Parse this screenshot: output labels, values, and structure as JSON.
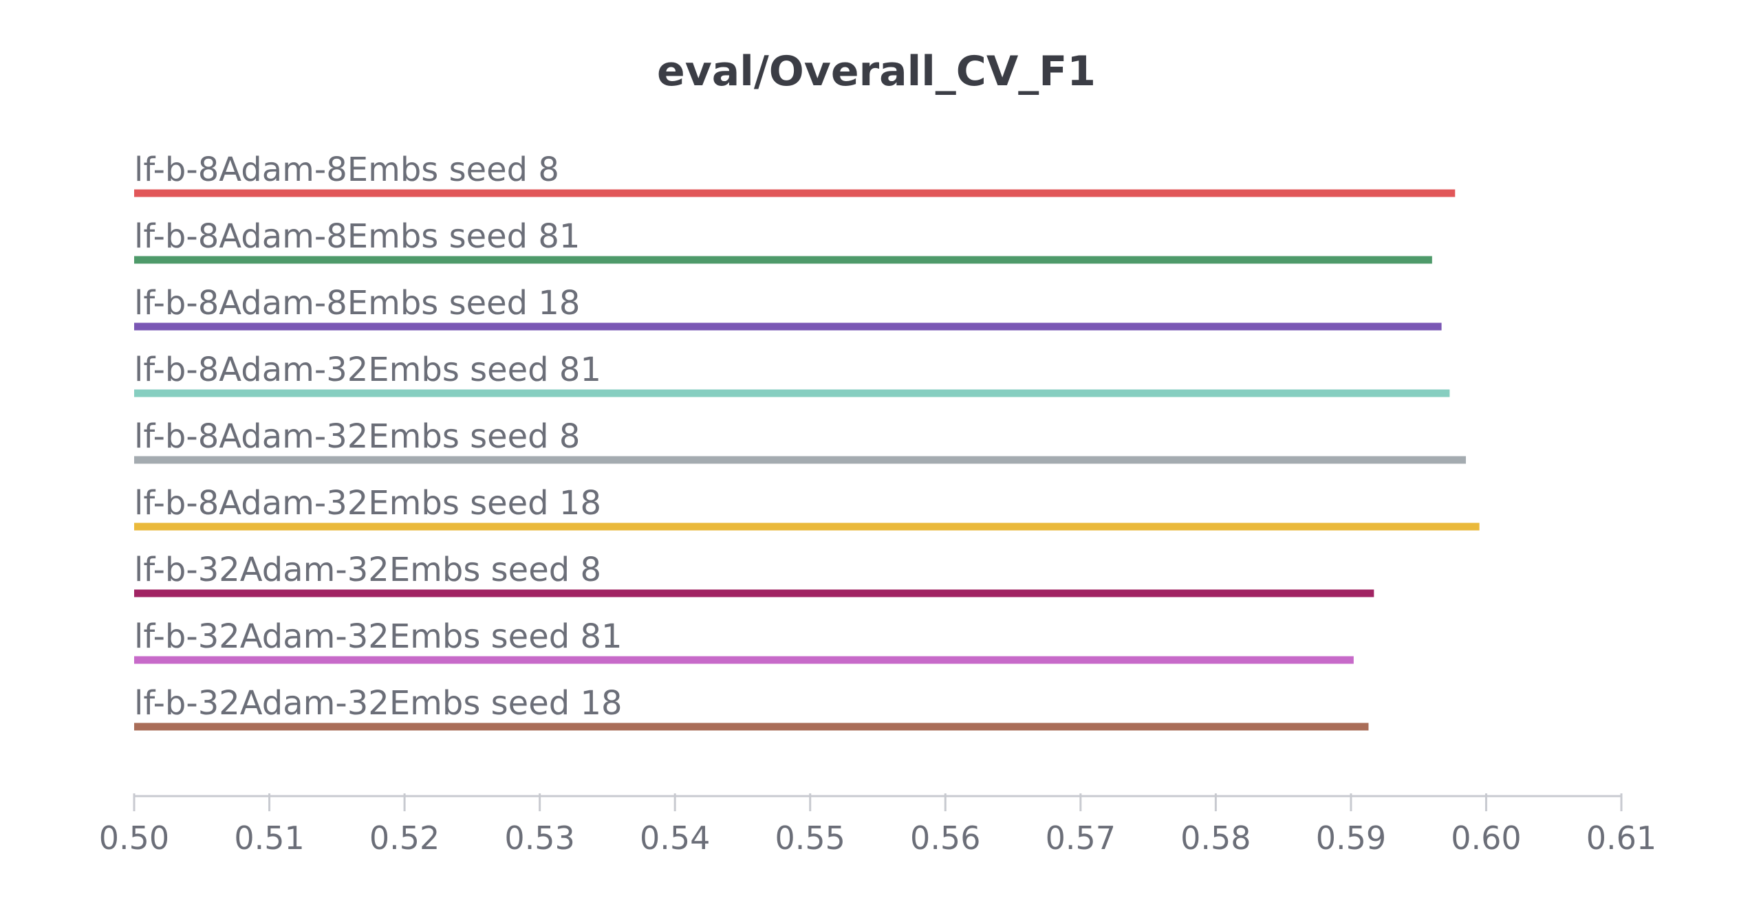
{
  "chart_data": {
    "type": "bar",
    "orientation": "horizontal",
    "title": "eval/Overall_CV_F1",
    "xlabel": "",
    "ylabel": "",
    "xlim": [
      0.5,
      0.61
    ],
    "grid": false,
    "legend": "none",
    "x_ticks": [
      "0.50",
      "0.51",
      "0.52",
      "0.53",
      "0.54",
      "0.55",
      "0.56",
      "0.57",
      "0.58",
      "0.59",
      "0.60",
      "0.61"
    ],
    "categories": [
      "lf-b-8Adam-8Embs seed 8",
      "lf-b-8Adam-8Embs seed 81",
      "lf-b-8Adam-8Embs seed 18",
      "lf-b-8Adam-32Embs seed 81",
      "lf-b-8Adam-32Embs seed 8",
      "lf-b-8Adam-32Embs seed 18",
      "lf-b-32Adam-32Embs seed 8",
      "lf-b-32Adam-32Embs seed 81",
      "lf-b-32Adam-32Embs seed 18"
    ],
    "values": [
      0.5977,
      0.596,
      0.5967,
      0.5973,
      0.5985,
      0.5995,
      0.5917,
      0.5902,
      0.5913
    ],
    "colors": [
      "#e15759",
      "#4e9a6a",
      "#7a57b4",
      "#86cec0",
      "#a4abb0",
      "#eab93b",
      "#a12463",
      "#c76ac9",
      "#a96d58"
    ]
  }
}
